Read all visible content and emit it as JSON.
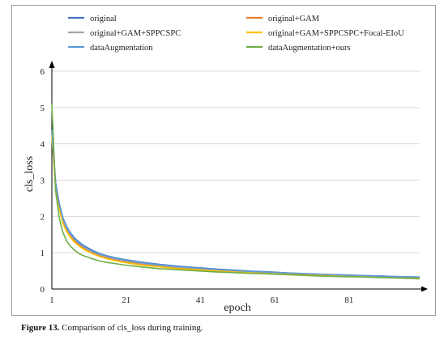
{
  "caption": {
    "label": "Figure 13.",
    "text": " Comparison of cls_loss during training."
  },
  "chart_data": {
    "type": "line",
    "title": "",
    "xlabel": "epoch",
    "ylabel": "cls_loss",
    "xlim": [
      1,
      100
    ],
    "ylim": [
      0,
      6
    ],
    "xticks": [
      1,
      21,
      41,
      61,
      81
    ],
    "yticks": [
      0,
      1,
      2,
      3,
      4,
      5,
      6
    ],
    "grid": true,
    "legend_position": "top",
    "x": [
      1,
      2,
      3,
      4,
      5,
      6,
      7,
      8,
      9,
      10,
      12,
      14,
      16,
      18,
      20,
      25,
      30,
      35,
      40,
      45,
      50,
      55,
      60,
      65,
      70,
      75,
      80,
      85,
      90,
      95,
      100
    ],
    "series": [
      {
        "name": "original",
        "color": "#4472C4",
        "values": [
          4.4,
          2.95,
          2.35,
          1.95,
          1.72,
          1.55,
          1.42,
          1.32,
          1.24,
          1.17,
          1.06,
          0.97,
          0.91,
          0.86,
          0.82,
          0.74,
          0.68,
          0.63,
          0.59,
          0.55,
          0.52,
          0.49,
          0.47,
          0.44,
          0.42,
          0.4,
          0.39,
          0.37,
          0.36,
          0.34,
          0.33
        ]
      },
      {
        "name": "original+GAM",
        "color": "#ED7D31",
        "values": [
          4.3,
          2.85,
          2.25,
          1.85,
          1.62,
          1.46,
          1.34,
          1.25,
          1.17,
          1.1,
          1.0,
          0.92,
          0.86,
          0.81,
          0.77,
          0.69,
          0.63,
          0.59,
          0.55,
          0.52,
          0.49,
          0.47,
          0.45,
          0.42,
          0.4,
          0.39,
          0.37,
          0.36,
          0.34,
          0.33,
          0.32
        ]
      },
      {
        "name": "original+GAM+SPPCSPC",
        "color": "#A5A5A5",
        "values": [
          4.35,
          2.9,
          2.3,
          1.9,
          1.68,
          1.5,
          1.38,
          1.28,
          1.2,
          1.13,
          1.02,
          0.94,
          0.88,
          0.83,
          0.79,
          0.71,
          0.65,
          0.6,
          0.57,
          0.53,
          0.5,
          0.48,
          0.46,
          0.43,
          0.41,
          0.39,
          0.38,
          0.36,
          0.35,
          0.34,
          0.32
        ]
      },
      {
        "name": "original+GAM+SPPCSPC+Focal-EIoU",
        "color": "#FFC000",
        "values": [
          4.2,
          2.8,
          2.2,
          1.8,
          1.58,
          1.42,
          1.3,
          1.21,
          1.13,
          1.07,
          0.97,
          0.89,
          0.83,
          0.78,
          0.74,
          0.66,
          0.61,
          0.56,
          0.53,
          0.5,
          0.47,
          0.45,
          0.43,
          0.41,
          0.39,
          0.37,
          0.36,
          0.34,
          0.33,
          0.32,
          0.31
        ]
      },
      {
        "name": "dataAugmentation",
        "color": "#5B9BD5",
        "values": [
          4.38,
          2.93,
          2.33,
          1.93,
          1.7,
          1.53,
          1.4,
          1.3,
          1.22,
          1.15,
          1.04,
          0.96,
          0.9,
          0.85,
          0.81,
          0.73,
          0.67,
          0.62,
          0.58,
          0.54,
          0.51,
          0.48,
          0.46,
          0.44,
          0.42,
          0.4,
          0.38,
          0.37,
          0.35,
          0.34,
          0.33
        ]
      },
      {
        "name": "dataAugmentation+ours",
        "color": "#70AD47",
        "values": [
          5.1,
          2.7,
          1.95,
          1.55,
          1.32,
          1.18,
          1.08,
          1.0,
          0.94,
          0.9,
          0.83,
          0.77,
          0.73,
          0.7,
          0.67,
          0.61,
          0.56,
          0.53,
          0.5,
          0.47,
          0.45,
          0.43,
          0.41,
          0.39,
          0.37,
          0.35,
          0.34,
          0.33,
          0.31,
          0.3,
          0.28
        ]
      }
    ]
  }
}
